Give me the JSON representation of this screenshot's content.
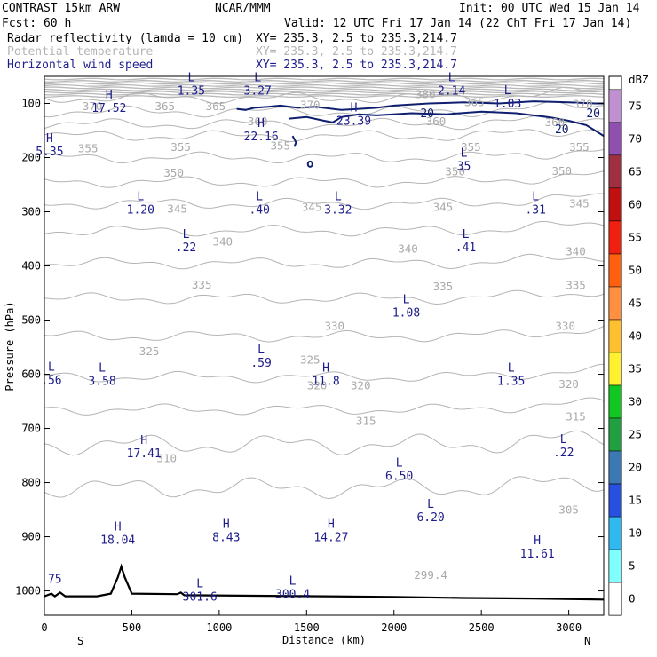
{
  "header": {
    "model": "CONTRAST 15km ARW",
    "org": "NCAR/MMM",
    "init": "Init: 00 UTC Wed 15 Jan 14",
    "fcst": "Fcst:   60 h",
    "valid": "Valid: 12 UTC Fri 17 Jan 14 (22 ChT Fri 17 Jan 14)",
    "fields": [
      {
        "name": "Radar reflectivity (lamda = 10 cm)",
        "xy": "XY= 235.3,  2.5 to 235.3,214.7",
        "color": "#000000"
      },
      {
        "name": "Potential temperature",
        "xy": "XY= 235.3,  2.5 to 235.3,214.7",
        "color": "#b4b4b4"
      },
      {
        "name": "Horizontal wind speed",
        "xy": "XY= 235.3,  2.5 to 235.3,214.7",
        "color": "#1c1c8c"
      }
    ]
  },
  "chart_data": {
    "type": "cross-section",
    "xlabel": "Distance (km)",
    "ylabel": "Pressure (hPa)",
    "xlim": [
      0,
      3200
    ],
    "ylim": [
      1045,
      50
    ],
    "x_ticks": [
      0,
      500,
      1000,
      1500,
      2000,
      2500,
      3000
    ],
    "x_tick_labels": [
      "0",
      "500",
      "1000",
      "1500",
      "2000",
      "2500",
      "3000"
    ],
    "y_ticks": [
      100,
      200,
      300,
      400,
      500,
      600,
      700,
      800,
      900,
      1000
    ],
    "y_tick_labels": [
      "100",
      "200",
      "300",
      "400",
      "500",
      "600",
      "700",
      "800",
      "900",
      "1000"
    ],
    "left_end_label": "S",
    "right_end_label": "N",
    "theta_contours": [
      {
        "value": 370,
        "p": 90
      },
      {
        "value": 365,
        "p": 115
      },
      {
        "value": 360,
        "p": 138
      },
      {
        "value": 355,
        "p": 160
      },
      {
        "value": 350,
        "p": 200
      },
      {
        "value": 345,
        "p": 245
      },
      {
        "value": 340,
        "p": 285
      },
      {
        "value": 335,
        "p": 335
      },
      {
        "value": 330,
        "p": 395
      },
      {
        "value": 325,
        "p": 460
      },
      {
        "value": 320,
        "p": 530
      },
      {
        "value": 315,
        "p": 605
      },
      {
        "value": 310,
        "p": 665
      },
      {
        "value": 305,
        "p": 730
      },
      {
        "value": 300,
        "p": 810
      }
    ],
    "theta_labels": [
      {
        "text": "370",
        "x": 275,
        "p": 112
      },
      {
        "text": "365",
        "x": 690,
        "p": 112
      },
      {
        "text": "365",
        "x": 980,
        "p": 112
      },
      {
        "text": "370",
        "x": 1520,
        "p": 110
      },
      {
        "text": "365",
        "x": 2460,
        "p": 105
      },
      {
        "text": "370",
        "x": 3080,
        "p": 108
      },
      {
        "text": "380",
        "x": 2180,
        "p": 90
      },
      {
        "text": "360",
        "x": 1220,
        "p": 140
      },
      {
        "text": "360",
        "x": 2240,
        "p": 140
      },
      {
        "text": "360",
        "x": 2920,
        "p": 142
      },
      {
        "text": "355",
        "x": 250,
        "p": 190
      },
      {
        "text": "355",
        "x": 780,
        "p": 188
      },
      {
        "text": "355",
        "x": 1350,
        "p": 185
      },
      {
        "text": "355",
        "x": 2440,
        "p": 188
      },
      {
        "text": "355",
        "x": 3060,
        "p": 188
      },
      {
        "text": "350",
        "x": 740,
        "p": 235
      },
      {
        "text": "350",
        "x": 2350,
        "p": 233
      },
      {
        "text": "350",
        "x": 2960,
        "p": 232
      },
      {
        "text": "345",
        "x": 760,
        "p": 302
      },
      {
        "text": "345",
        "x": 1530,
        "p": 298
      },
      {
        "text": "345",
        "x": 2280,
        "p": 298
      },
      {
        "text": "345",
        "x": 3060,
        "p": 292
      },
      {
        "text": "340",
        "x": 1020,
        "p": 362
      },
      {
        "text": "340",
        "x": 2080,
        "p": 375
      },
      {
        "text": "340",
        "x": 3040,
        "p": 380
      },
      {
        "text": "335",
        "x": 900,
        "p": 442
      },
      {
        "text": "335",
        "x": 2280,
        "p": 445
      },
      {
        "text": "335",
        "x": 3040,
        "p": 443
      },
      {
        "text": "330",
        "x": 1660,
        "p": 518
      },
      {
        "text": "330",
        "x": 2980,
        "p": 518
      },
      {
        "text": "325",
        "x": 600,
        "p": 565
      },
      {
        "text": "325",
        "x": 1520,
        "p": 580
      },
      {
        "text": "320",
        "x": 1560,
        "p": 628
      },
      {
        "text": "320",
        "x": 1810,
        "p": 628
      },
      {
        "text": "320",
        "x": 3000,
        "p": 625
      },
      {
        "text": "315",
        "x": 1840,
        "p": 693
      },
      {
        "text": "315",
        "x": 3040,
        "p": 685
      },
      {
        "text": "310",
        "x": 700,
        "p": 762
      },
      {
        "text": "305",
        "x": 3000,
        "p": 857
      },
      {
        "text": "299.4",
        "x": 2210,
        "p": 978
      }
    ],
    "extrema": [
      {
        "type": "H",
        "value": "17.52",
        "x": 370,
        "p": 112
      },
      {
        "type": "L",
        "value": "1.35",
        "x": 840,
        "p": 80
      },
      {
        "type": "L",
        "value": "3.27",
        "x": 1220,
        "p": 80
      },
      {
        "type": "L",
        "value": "2.14",
        "x": 2330,
        "p": 80
      },
      {
        "type": "L",
        "value": "1.03",
        "x": 2650,
        "p": 104
      },
      {
        "type": "H",
        "value": "23.39",
        "x": 1770,
        "p": 136
      },
      {
        "type": "H",
        "value": "22.16",
        "x": 1240,
        "p": 165
      },
      {
        "type": "H",
        "value": "5.35",
        "x": 30,
        "p": 193
      },
      {
        "type": "L",
        "value": "35",
        "x": 2400,
        "p": 220
      },
      {
        "type": "L",
        "value": "1.20",
        "x": 550,
        "p": 300
      },
      {
        "type": "L",
        "value": ".40",
        "x": 1230,
        "p": 300
      },
      {
        "type": "L",
        "value": "3.32",
        "x": 1680,
        "p": 300
      },
      {
        "type": "L",
        "value": ".31",
        "x": 2810,
        "p": 300
      },
      {
        "type": "L",
        "value": ".22",
        "x": 810,
        "p": 370
      },
      {
        "type": "L",
        "value": ".41",
        "x": 2410,
        "p": 370
      },
      {
        "type": "L",
        "value": "1.08",
        "x": 2070,
        "p": 490
      },
      {
        "type": "L",
        "value": ".59",
        "x": 1240,
        "p": 583
      },
      {
        "type": "L",
        "value": ".56",
        "x": 40,
        "p": 615
      },
      {
        "type": "L",
        "value": "3.58",
        "x": 330,
        "p": 616
      },
      {
        "type": "H",
        "value": "11.8",
        "x": 1610,
        "p": 616
      },
      {
        "type": "L",
        "value": "1.35",
        "x": 2670,
        "p": 616
      },
      {
        "type": "H",
        "value": "17.41",
        "x": 570,
        "p": 750
      },
      {
        "type": "L",
        "value": ".22",
        "x": 2970,
        "p": 748
      },
      {
        "type": "L",
        "value": "6.50",
        "x": 2030,
        "p": 792
      },
      {
        "type": "L",
        "value": "6.20",
        "x": 2210,
        "p": 868
      },
      {
        "type": "H",
        "value": "18.04",
        "x": 420,
        "p": 910
      },
      {
        "type": "H",
        "value": "8.43",
        "x": 1040,
        "p": 905
      },
      {
        "type": "H",
        "value": "14.27",
        "x": 1640,
        "p": 905
      },
      {
        "type": "H",
        "value": "11.61",
        "x": 2820,
        "p": 935
      },
      {
        "type": "L",
        "value": "301.6",
        "x": 890,
        "p": 1015
      },
      {
        "type": "L",
        "value": "300.4",
        "x": 1420,
        "p": 1010
      }
    ],
    "isolated_labels": [
      {
        "text": "75",
        "x": 60,
        "p": 985
      }
    ],
    "wind_contour_labels": [
      {
        "text": "20",
        "x": 2190,
        "p": 125
      },
      {
        "text": "20",
        "x": 2960,
        "p": 155
      },
      {
        "text": "20",
        "x": 3140,
        "p": 125
      }
    ],
    "colorbar": {
      "unit": "dBZ",
      "levels": [
        "0",
        "5",
        "10",
        "15",
        "20",
        "25",
        "30",
        "35",
        "40",
        "45",
        "50",
        "55",
        "60",
        "65",
        "70",
        "75"
      ],
      "colors": [
        "#ffffff",
        "#80ffff",
        "#30b8f0",
        "#2850e0",
        "#3c78b4",
        "#20a040",
        "#10c820",
        "#fff030",
        "#ffc030",
        "#ff9040",
        "#ff6010",
        "#f02010",
        "#c01010",
        "#a03040",
        "#9050b0",
        "#c090d0"
      ]
    }
  }
}
